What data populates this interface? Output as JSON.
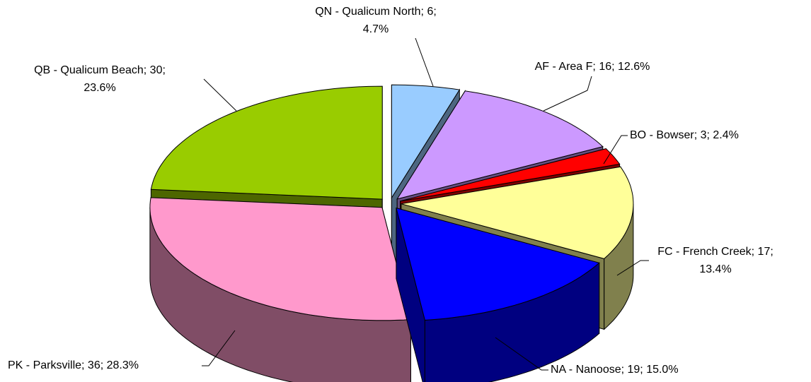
{
  "chart_data": {
    "type": "pie3d",
    "categories": [
      "QN - Qualicum North",
      "AF - Area F",
      "BO - Bowser",
      "FC - French Creek",
      "NA - Nanoose",
      "PK - Parksville",
      "QB - Qualicum Beach"
    ],
    "values": [
      6,
      16,
      3,
      17,
      19,
      36,
      30
    ],
    "percentages": [
      4.7,
      12.6,
      2.4,
      13.4,
      15.0,
      28.3,
      23.6
    ],
    "value_labels": [
      [
        "QN - Qualicum North; 6;",
        "4.7%"
      ],
      [
        "AF - Area F; 16; 12.6%"
      ],
      [
        "BO - Bowser; 3; 2.4%"
      ],
      [
        "FC - French Creek; 17;",
        "13.4%"
      ],
      [
        "NA - Nanoose; 19; 15.0%"
      ],
      [
        "PK - Parksville; 36; 28.3%"
      ],
      [
        "QB - Qualicum Beach; 30;",
        "23.6%"
      ]
    ],
    "colors": [
      "#99CCFF",
      "#CC99FF",
      "#FF0000",
      "#FFFF99",
      "#0000FF",
      "#FF99CC",
      "#99CC00"
    ],
    "exploded": true
  }
}
